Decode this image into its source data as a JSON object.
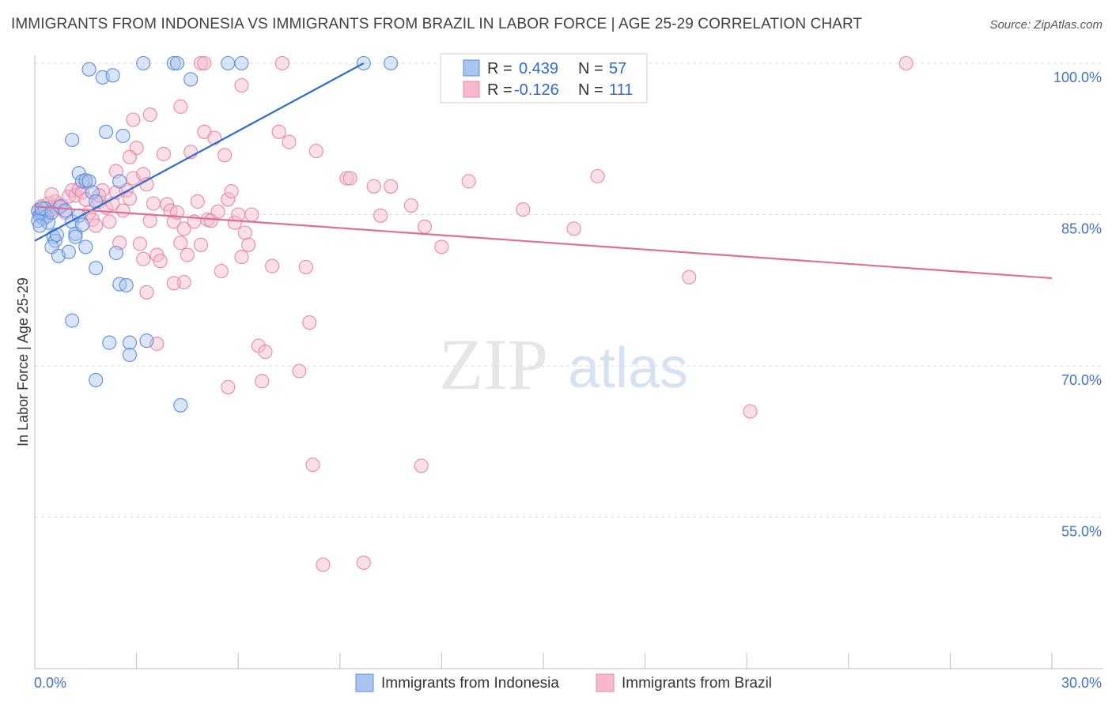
{
  "title": "IMMIGRANTS FROM INDONESIA VS IMMIGRANTS FROM BRAZIL IN LABOR FORCE | AGE 25-29 CORRELATION CHART",
  "source": "Source: ZipAtlas.com",
  "watermark": {
    "zip": "ZIP",
    "atlas": "atlas"
  },
  "legend_box": [
    {
      "r_label": "R =",
      "r_value": "0.439",
      "n_label": "N =",
      "n_value": "57"
    },
    {
      "r_label": "R =",
      "r_value": "-0.126",
      "n_label": "N =",
      "n_value": "111"
    }
  ],
  "colors": {
    "indonesia_fill": "#a8c4ef",
    "indonesia_stroke": "#5b8fd9",
    "indonesia_line": "#2e6bd1",
    "brazil_fill": "#f6b8cb",
    "brazil_stroke": "#e888a8",
    "brazil_line": "#e06e97",
    "grid": "#dddddd",
    "tick_text": "#4472c4"
  },
  "chart_data": {
    "type": "scatter",
    "title": "IMMIGRANTS FROM INDONESIA VS IMMIGRANTS FROM BRAZIL IN LABOR FORCE | AGE 25-29 CORRELATION CHART",
    "xlabel": "",
    "ylabel": "In Labor Force | Age 25-29",
    "xlim": [
      0,
      30
    ],
    "ylim": [
      42,
      101
    ],
    "x_tick_labels": [
      "0.0%",
      "30.0%"
    ],
    "y_ticks": [
      100,
      85,
      70,
      55
    ],
    "y_tick_labels": [
      "100.0%",
      "85.0%",
      "70.0%",
      "55.0%"
    ],
    "grid": true,
    "legend_position": "bottom",
    "series": [
      {
        "name": "Immigrants from Indonesia",
        "r": 0.439,
        "n": 57,
        "trend": {
          "x0": 0.0,
          "y0": 82.4,
          "x1": 9.7,
          "y1": 100.0
        },
        "points": [
          [
            0.1,
            85.4
          ],
          [
            0.15,
            84.9
          ],
          [
            0.2,
            85.1
          ],
          [
            0.25,
            84.6
          ],
          [
            0.3,
            85.6
          ],
          [
            0.35,
            84.8
          ],
          [
            0.1,
            84.4
          ],
          [
            0.2,
            85.6
          ],
          [
            0.4,
            84.2
          ],
          [
            0.5,
            85.2
          ],
          [
            0.55,
            82.8
          ],
          [
            0.6,
            82.4
          ],
          [
            0.5,
            81.8
          ],
          [
            0.7,
            80.9
          ],
          [
            0.65,
            83.0
          ],
          [
            0.75,
            85.8
          ],
          [
            1.0,
            81.3
          ],
          [
            1.1,
            84.3
          ],
          [
            0.9,
            85.4
          ],
          [
            1.2,
            83.1
          ],
          [
            1.2,
            82.8
          ],
          [
            1.3,
            84.9
          ],
          [
            1.4,
            84.0
          ],
          [
            1.5,
            81.8
          ],
          [
            1.3,
            89.1
          ],
          [
            1.4,
            88.3
          ],
          [
            1.5,
            88.4
          ],
          [
            1.6,
            88.3
          ],
          [
            1.7,
            87.2
          ],
          [
            1.8,
            86.3
          ],
          [
            1.1,
            92.4
          ],
          [
            2.1,
            93.2
          ],
          [
            2.6,
            92.8
          ],
          [
            2.5,
            88.3
          ],
          [
            1.8,
            79.7
          ],
          [
            2.4,
            81.2
          ],
          [
            2.5,
            78.1
          ],
          [
            2.7,
            78.0
          ],
          [
            1.1,
            74.5
          ],
          [
            2.2,
            72.3
          ],
          [
            2.8,
            72.3
          ],
          [
            3.3,
            72.5
          ],
          [
            2.8,
            71.1
          ],
          [
            1.8,
            68.6
          ],
          [
            4.3,
            66.1
          ],
          [
            1.6,
            99.4
          ],
          [
            2.0,
            98.6
          ],
          [
            2.3,
            98.8
          ],
          [
            3.2,
            100.0
          ],
          [
            4.1,
            100.0
          ],
          [
            4.2,
            100.0
          ],
          [
            4.6,
            98.4
          ],
          [
            5.7,
            100.0
          ],
          [
            6.1,
            100.0
          ],
          [
            9.7,
            100.0
          ],
          [
            10.5,
            100.0
          ],
          [
            0.15,
            83.9
          ]
        ]
      },
      {
        "name": "Immigrants from Brazil",
        "r": -0.126,
        "n": 111,
        "trend": {
          "x0": 0.0,
          "y0": 85.8,
          "x1": 30.0,
          "y1": 78.7
        },
        "points": [
          [
            0.1,
            85.3
          ],
          [
            0.2,
            85.8
          ],
          [
            0.3,
            84.9
          ],
          [
            0.4,
            86.1
          ],
          [
            0.5,
            85.5
          ],
          [
            0.6,
            86.3
          ],
          [
            0.7,
            85.7
          ],
          [
            0.8,
            85.9
          ],
          [
            0.9,
            85.2
          ],
          [
            1.0,
            86.8
          ],
          [
            1.1,
            87.4
          ],
          [
            1.2,
            86.9
          ],
          [
            1.3,
            87.5
          ],
          [
            1.4,
            87.2
          ],
          [
            1.5,
            86.5
          ],
          [
            1.6,
            85.2
          ],
          [
            1.7,
            84.5
          ],
          [
            1.8,
            83.9
          ],
          [
            1.9,
            86.3
          ],
          [
            2.0,
            87.4
          ],
          [
            2.1,
            85.7
          ],
          [
            2.2,
            84.3
          ],
          [
            2.3,
            86.1
          ],
          [
            2.4,
            87.2
          ],
          [
            2.5,
            82.2
          ],
          [
            2.6,
            85.4
          ],
          [
            2.7,
            87.4
          ],
          [
            2.8,
            86.6
          ],
          [
            2.9,
            88.6
          ],
          [
            3.0,
            91.6
          ],
          [
            3.1,
            82.1
          ],
          [
            3.2,
            80.6
          ],
          [
            3.3,
            77.3
          ],
          [
            3.4,
            84.4
          ],
          [
            3.5,
            86.1
          ],
          [
            3.6,
            81.0
          ],
          [
            3.7,
            80.4
          ],
          [
            3.8,
            91.0
          ],
          [
            3.9,
            86.0
          ],
          [
            4.0,
            85.4
          ],
          [
            4.1,
            84.3
          ],
          [
            4.2,
            85.2
          ],
          [
            4.3,
            82.2
          ],
          [
            4.4,
            83.6
          ],
          [
            4.5,
            81.0
          ],
          [
            4.6,
            91.2
          ],
          [
            4.7,
            84.3
          ],
          [
            4.8,
            86.3
          ],
          [
            4.9,
            82.0
          ],
          [
            5.0,
            93.2
          ],
          [
            5.1,
            84.5
          ],
          [
            5.2,
            84.4
          ],
          [
            5.3,
            92.6
          ],
          [
            5.4,
            85.3
          ],
          [
            5.5,
            79.4
          ],
          [
            5.6,
            90.9
          ],
          [
            5.7,
            86.5
          ],
          [
            5.8,
            87.3
          ],
          [
            5.9,
            84.2
          ],
          [
            6.0,
            85.0
          ],
          [
            6.1,
            80.8
          ],
          [
            6.2,
            83.2
          ],
          [
            6.3,
            82.0
          ],
          [
            6.4,
            85.0
          ],
          [
            6.6,
            72.0
          ],
          [
            6.8,
            71.4
          ],
          [
            7.0,
            79.9
          ],
          [
            7.2,
            93.2
          ],
          [
            7.5,
            92.2
          ],
          [
            7.8,
            69.5
          ],
          [
            8.0,
            79.8
          ],
          [
            8.1,
            74.3
          ],
          [
            3.4,
            94.9
          ],
          [
            4.3,
            95.7
          ],
          [
            6.1,
            97.8
          ],
          [
            2.9,
            94.4
          ],
          [
            3.2,
            89.0
          ],
          [
            2.4,
            89.3
          ],
          [
            1.9,
            86.9
          ],
          [
            0.5,
            87.0
          ],
          [
            8.3,
            91.3
          ],
          [
            9.2,
            88.6
          ],
          [
            9.3,
            88.6
          ],
          [
            10.0,
            87.8
          ],
          [
            10.5,
            87.8
          ],
          [
            11.1,
            85.9
          ],
          [
            11.5,
            83.8
          ],
          [
            12.0,
            81.8
          ],
          [
            10.2,
            84.9
          ],
          [
            12.8,
            88.3
          ],
          [
            14.4,
            85.5
          ],
          [
            15.9,
            83.6
          ],
          [
            16.6,
            88.8
          ],
          [
            19.3,
            78.8
          ],
          [
            21.1,
            65.5
          ],
          [
            25.7,
            100.0
          ],
          [
            4.9,
            100.0
          ],
          [
            5.0,
            100.0
          ],
          [
            7.3,
            100.0
          ],
          [
            5.7,
            67.9
          ],
          [
            8.2,
            60.2
          ],
          [
            11.4,
            60.1
          ],
          [
            8.5,
            50.3
          ],
          [
            9.7,
            50.5
          ],
          [
            6.7,
            68.5
          ],
          [
            3.6,
            72.2
          ],
          [
            4.4,
            78.3
          ],
          [
            4.1,
            78.2
          ],
          [
            2.8,
            90.7
          ],
          [
            1.5,
            88.2
          ],
          [
            3.3,
            88.0
          ]
        ]
      }
    ]
  }
}
